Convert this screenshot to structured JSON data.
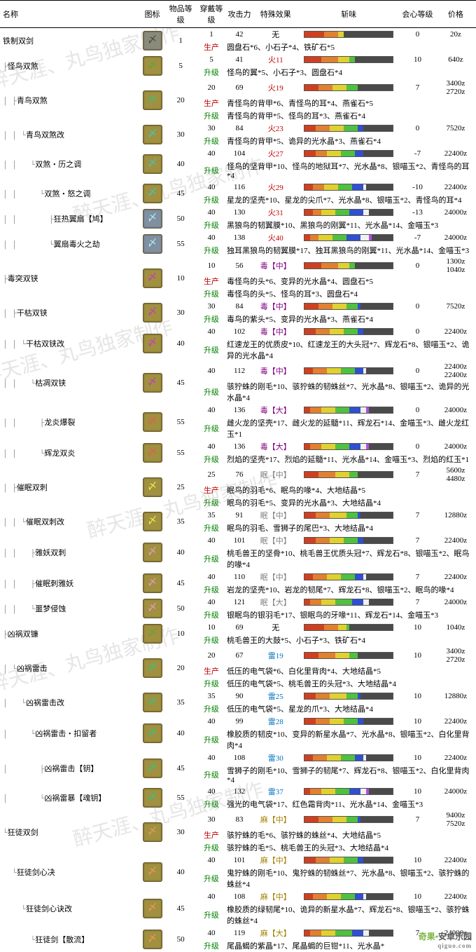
{
  "headers": {
    "name": "名称",
    "icon": "图标",
    "item_level": "物品等级",
    "wear_rank": "穿戴等级",
    "attack": "攻击力",
    "effect": "特殊效果",
    "sharpness": "斩味",
    "critical": "会心等级",
    "price": "价格"
  },
  "mat_labels": {
    "upgrade": "升级",
    "produce": "生产"
  },
  "watermark": "醉天涯、丸鸟独家制作",
  "footer": {
    "brand1": "奇果",
    "brand2": "安卓乐园",
    "url": "qiguo.com"
  },
  "elems": {
    "fire": "火",
    "poison": "毒",
    "sleep": "眠",
    "thunder": "雷",
    "drag": "麻",
    "none": "无",
    "mid": "【中】",
    "large": "【大】"
  },
  "weapons": [
    {
      "tree": "",
      "name": "铁制双剑",
      "icon": "gray",
      "ilvl": "1",
      "rows": [
        {
          "rank": "1",
          "atk": "42",
          "elem": "none",
          "eval": "无",
          "crit": "0",
          "price": "20z",
          "sharp": [
            14,
            10,
            4,
            0,
            0,
            0,
            0
          ]
        }
      ],
      "mats": [
        {
          "type": "produce",
          "text": "圆盘石*6、小石子*4、铁矿石*5"
        }
      ]
    },
    {
      "tree": "├",
      "name": "怪鸟双煞",
      "icon": "olive",
      "ilvl": "5",
      "rows": [
        {
          "rank": "5",
          "atk": "41",
          "elem": "fire",
          "eval": "火11",
          "crit": "10",
          "price": "640z",
          "sharp": [
            12,
            12,
            8,
            4,
            0,
            0,
            0
          ]
        }
      ],
      "mats": [
        {
          "type": "upgrade",
          "text": "怪鸟的翼*5、小石子*3、圆盘石*4"
        }
      ]
    },
    {
      "tree": "│ ├",
      "name": "青鸟双煞",
      "icon": "green",
      "ilvl": "20",
      "rows": [
        {
          "rank": "20",
          "atk": "69",
          "elem": "fire",
          "eval": "火19",
          "crit": "7",
          "price": "3400z\n2720z",
          "sharp": [
            10,
            10,
            10,
            8,
            0,
            0,
            0
          ]
        }
      ],
      "mats": [
        {
          "type": "produce",
          "text": "青怪鸟的背甲*6、青怪鸟的耳*4、燕雀石*5"
        },
        {
          "type": "upgrade",
          "text": "青怪鸟的背甲*5、怪鸟的耳*3、燕雀石*4"
        }
      ]
    },
    {
      "tree": "│ │ └",
      "name": "青鸟双煞改",
      "icon": "teal",
      "ilvl": "30",
      "rows": [
        {
          "rank": "30",
          "atk": "84",
          "elem": "fire",
          "eval": "火23",
          "crit": "0",
          "price": "7520z",
          "sharp": [
            8,
            10,
            10,
            10,
            4,
            0,
            0
          ]
        }
      ],
      "mats": [
        {
          "type": "upgrade",
          "text": "青怪鸟的背甲*5、诡异的光水晶*3、燕雀石*4"
        }
      ]
    },
    {
      "tree": "│ │   └",
      "name": "双煞・历之调",
      "icon": "teal",
      "ilvl": "40",
      "rows": [
        {
          "rank": "40",
          "atk": "104",
          "elem": "fire",
          "eval": "火27",
          "crit": "-7",
          "price": "22400z",
          "sharp": [
            8,
            8,
            10,
            10,
            6,
            0,
            0
          ]
        }
      ],
      "mats": [
        {
          "type": "upgrade",
          "text": "怪鸟的坚背甲*10、怪鸟的地狱耳*7、光水晶*8、银喵玉*2、青怪鸟的耳*4"
        }
      ]
    },
    {
      "tree": "│ │     └",
      "name": "双煞・怒之调",
      "icon": "teal",
      "ilvl": "45",
      "rows": [
        {
          "rank": "40",
          "atk": "116",
          "elem": "fire",
          "eval": "火29",
          "crit": "-10",
          "price": "22400z",
          "sharp": [
            6,
            8,
            10,
            10,
            8,
            2,
            0
          ]
        }
      ],
      "mats": [
        {
          "type": "upgrade",
          "text": "星龙的坚壳*10、星龙的尖爪*7、光水晶*8、银喵玉*2、青怪鸟的耳*4"
        }
      ]
    },
    {
      "tree": "│ │       ├",
      "name": "狂热翼扇【鸠】",
      "icon": "blue",
      "ilvl": "50",
      "rows": [
        {
          "rank": "40",
          "atk": "130",
          "elem": "fire",
          "eval": "火31",
          "crit": "-13",
          "price": "24000z",
          "sharp": [
            6,
            6,
            10,
            10,
            10,
            4,
            0
          ]
        }
      ],
      "mats": [
        {
          "type": "upgrade",
          "text": "黑狼鸟的韧翼膜*10、黑狼鸟的刚翼*11、光水晶*14、金喵玉*3"
        }
      ]
    },
    {
      "tree": "│ │       └",
      "name": "翼扇毒火之劫",
      "icon": "blue",
      "ilvl": "55",
      "rows": [
        {
          "rank": "40",
          "atk": "138",
          "elem": "fire",
          "eval": "火40",
          "crit": "-7",
          "price": "24000z",
          "sharp": [
            4,
            6,
            10,
            10,
            10,
            6,
            2
          ]
        }
      ],
      "mats": [
        {
          "type": "upgrade",
          "text": "独耳黑狼鸟的韧翼膜*17、独耳黑狼鸟的刚翼*11、光水晶*14、金喵玉*3"
        }
      ]
    },
    {
      "tree": "├",
      "name": "毒突双铗",
      "icon": "purple",
      "ilvl": "10",
      "rows": [
        {
          "rank": "10",
          "atk": "56",
          "elem": "poison",
          "eval": "毒【中】",
          "crit": "0",
          "price": "1300z\n1040z",
          "sharp": [
            12,
            12,
            8,
            4,
            0,
            0,
            0
          ]
        }
      ],
      "mats": [
        {
          "type": "produce",
          "text": "毒怪鸟的头*6、变异的光水晶*4、圆盘石*5"
        },
        {
          "type": "upgrade",
          "text": "毒怪鸟的头*5、怪鸟的耳*3、圆盘石*4"
        }
      ]
    },
    {
      "tree": "│ ├",
      "name": "干枯双铗",
      "icon": "purple",
      "ilvl": "30",
      "rows": [
        {
          "rank": "30",
          "atk": "84",
          "elem": "poison",
          "eval": "毒【中】",
          "crit": "0",
          "price": "7520z",
          "sharp": [
            10,
            10,
            10,
            8,
            2,
            0,
            0
          ]
        }
      ],
      "mats": [
        {
          "type": "upgrade",
          "text": "毒鸟的紫头*5、变异的光水晶*3、燕雀石*4"
        }
      ]
    },
    {
      "tree": "│ │ └",
      "name": "干枯双铗改",
      "icon": "purple",
      "ilvl": "40",
      "rows": [
        {
          "rank": "40",
          "atk": "102",
          "elem": "poison",
          "eval": "毒【中】",
          "crit": "0",
          "price": "22400z",
          "sharp": [
            8,
            10,
            10,
            10,
            4,
            0,
            0
          ]
        }
      ],
      "mats": [
        {
          "type": "upgrade",
          "text": "红速龙王的优质皮*10、红速龙王的大头冠*7、辉龙石*8、银喵玉*2、诡异的光水晶*4"
        }
      ]
    },
    {
      "tree": "│ │   └",
      "name": "枯凋双铗",
      "icon": "purple",
      "ilvl": "45",
      "rows": [
        {
          "rank": "40",
          "atk": "112",
          "elem": "poison",
          "eval": "毒【中】",
          "crit": "0",
          "price": "22400z\n22400z",
          "sharp": [
            6,
            10,
            10,
            10,
            6,
            2,
            0
          ]
        }
      ],
      "mats": [
        {
          "type": "upgrade",
          "text": "骇狞蛛的刚毛*10、骇狞蛛的韧蛛丝*7、光水晶*8、银喵玉*2、诡异的光水晶*4"
        }
      ]
    },
    {
      "tree": "│ │     ├",
      "name": "龙炎爆裂",
      "icon": "red",
      "ilvl": "55",
      "rows": [
        {
          "rank": "40",
          "atk": "136",
          "elem": "poison",
          "eval": "毒【大】",
          "crit": "0",
          "price": "24000z",
          "sharp": [
            4,
            8,
            10,
            10,
            8,
            4,
            2
          ]
        }
      ],
      "mats": [
        {
          "type": "upgrade",
          "text": "雌火龙的坚壳*17、雌火龙的延髓*11、辉龙石*14、金喵玉*3、雌火龙红玉*1"
        }
      ]
    },
    {
      "tree": "│ │     └",
      "name": "辉龙双炎",
      "icon": "red",
      "ilvl": "55",
      "rows": [
        {
          "rank": "40",
          "atk": "136",
          "elem": "poison",
          "eval": "毒【大】",
          "crit": "0",
          "price": "24000z",
          "sharp": [
            4,
            8,
            10,
            10,
            8,
            4,
            2
          ]
        }
      ],
      "mats": [
        {
          "type": "upgrade",
          "text": "烈焰的坚壳*17、烈焰的延髓*11、光水晶*14、金喵玉*3、烈焰的红玉*1"
        }
      ]
    },
    {
      "tree": "│ ├",
      "name": "催眠双刺",
      "icon": "yellow",
      "ilvl": "25",
      "rows": [
        {
          "rank": "25",
          "atk": "76",
          "elem": "sleep",
          "eval": "眠【中】",
          "crit": "7",
          "price": "5600z\n4480z",
          "sharp": [
            10,
            12,
            10,
            6,
            0,
            0,
            0
          ]
        }
      ],
      "mats": [
        {
          "type": "produce",
          "text": "眠鸟的羽毛*6、眠鸟的喙*4、大地结晶*5"
        },
        {
          "type": "upgrade",
          "text": "眠鸟的羽毛*5、变异的光水晶*3、大地结晶*4"
        }
      ]
    },
    {
      "tree": "│ │ └",
      "name": "催眠双刺改",
      "icon": "yellow",
      "ilvl": "35",
      "rows": [
        {
          "rank": "35",
          "atk": "91",
          "elem": "sleep",
          "eval": "眠【中】",
          "crit": "7",
          "price": "12880z",
          "sharp": [
            8,
            10,
            12,
            8,
            2,
            0,
            0
          ]
        }
      ],
      "mats": [
        {
          "type": "upgrade",
          "text": "眠鸟的羽毛、雪狮子的尾巴*3、大地结晶*4"
        }
      ]
    },
    {
      "tree": "│ │   ├",
      "name": "雅妖双刺",
      "icon": "pink",
      "ilvl": "40",
      "rows": [
        {
          "rank": "40",
          "atk": "101",
          "elem": "sleep",
          "eval": "眠【中】",
          "crit": "7",
          "price": "22400z",
          "sharp": [
            8,
            10,
            10,
            10,
            4,
            0,
            0
          ]
        }
      ],
      "mats": [
        {
          "type": "upgrade",
          "text": "桃毛兽王的坚骨*10、桃毛兽王优质头冠*7、辉龙石*8、银喵玉*2、眠鸟的喙*4"
        }
      ]
    },
    {
      "tree": "│ │   ├",
      "name": "催眠刺雅妖",
      "icon": "pink",
      "ilvl": "45",
      "rows": [
        {
          "rank": "40",
          "atk": "110",
          "elem": "sleep",
          "eval": "眠【中】",
          "crit": "7",
          "price": "22400z",
          "sharp": [
            6,
            10,
            10,
            10,
            6,
            2,
            0
          ]
        }
      ],
      "mats": [
        {
          "type": "upgrade",
          "text": "岩龙的坚壳*10、岩龙的韧尾*7、辉龙石*8、银喵玉*2、眠鸟的喙*4"
        }
      ]
    },
    {
      "tree": "│ │   └",
      "name": "噩梦侵蚀",
      "icon": "pink",
      "ilvl": "50",
      "rows": [
        {
          "rank": "40",
          "atk": "121",
          "elem": "sleep",
          "eval": "眠【大】",
          "crit": "7",
          "price": "24000z",
          "sharp": [
            4,
            8,
            10,
            12,
            8,
            4,
            0
          ]
        }
      ],
      "mats": [
        {
          "type": "upgrade",
          "text": "银眠鸟的银羽毛*17、银眠鸟的牙喙*11、辉龙石*14、金喵玉*3"
        }
      ]
    },
    {
      "tree": "├",
      "name": "凶祸双镰",
      "icon": "olive",
      "ilvl": "10",
      "rows": [
        {
          "rank": "10",
          "atk": "69",
          "elem": "none",
          "eval": "无",
          "crit": "10",
          "price": "1040z",
          "sharp": [
            14,
            10,
            6,
            2,
            0,
            0,
            0
          ]
        }
      ],
      "mats": [
        {
          "type": "upgrade",
          "text": "桃毛兽王的大鼓*5、小石子*3、铁矿石*4"
        }
      ]
    },
    {
      "tree": "│ └",
      "name": "凶祸雷击",
      "icon": "green",
      "ilvl": "20",
      "rows": [
        {
          "rank": "20",
          "atk": "67",
          "elem": "thunder",
          "eval": "雷19",
          "crit": "10",
          "price": "3400z\n2720z",
          "sharp": [
            10,
            12,
            10,
            6,
            0,
            0,
            0
          ]
        }
      ],
      "mats": [
        {
          "type": "produce",
          "text": "低压的电气袋*6、白化里背肉*4、大地结晶*5"
        },
        {
          "type": "upgrade",
          "text": "低压的电气袋*5、桃毛兽王的头冠*3、大地结晶*4"
        }
      ]
    },
    {
      "tree": "│   └",
      "name": "凶祸雷击改",
      "icon": "green",
      "ilvl": "35",
      "rows": [
        {
          "rank": "35",
          "atk": "90",
          "elem": "thunder",
          "eval": "雷25",
          "crit": "10",
          "price": "12880z",
          "sharp": [
            8,
            10,
            12,
            8,
            2,
            0,
            0
          ]
        }
      ],
      "mats": [
        {
          "type": "upgrade",
          "text": "低压的电气袋*5、星龙的爪*3、大地结晶*4"
        }
      ]
    },
    {
      "tree": "│     └",
      "name": "凶祸雷击・扣留者",
      "icon": "green",
      "ilvl": "40",
      "rows": [
        {
          "rank": "40",
          "atk": "99",
          "elem": "thunder",
          "eval": "雷28",
          "crit": "10",
          "price": "22400z",
          "sharp": [
            8,
            10,
            10,
            10,
            4,
            0,
            0
          ]
        }
      ],
      "mats": [
        {
          "type": "upgrade",
          "text": "橡胶质的韧皮*10、变异的新星水晶*7、光水晶*8、银喵玉*2、白化里背肉*4"
        }
      ]
    },
    {
      "tree": "│       ├",
      "name": "凶祸雷击【钥】",
      "icon": "green",
      "ilvl": "45",
      "rows": [
        {
          "rank": "40",
          "atk": "108",
          "elem": "thunder",
          "eval": "雷30",
          "crit": "10",
          "price": "22400z",
          "sharp": [
            6,
            10,
            10,
            10,
            6,
            2,
            0
          ]
        }
      ],
      "mats": [
        {
          "type": "upgrade",
          "text": "雪狮子的刚毛*10、雪狮子的韧尾*7、辉龙石*8、银喵玉*2、白化里背肉*4"
        }
      ]
    },
    {
      "tree": "│       └",
      "name": "凶祸雷暴【魂钥】",
      "icon": "green",
      "ilvl": "55",
      "rows": [
        {
          "rank": "40",
          "atk": "132",
          "elem": "thunder",
          "eval": "雷37",
          "crit": "10",
          "price": "24000z",
          "sharp": [
            4,
            8,
            10,
            10,
            8,
            4,
            2
          ]
        }
      ],
      "mats": [
        {
          "type": "upgrade",
          "text": "强光的电气袋*17、红色霜背肉*11、光水晶*14、金喵玉*3"
        }
      ]
    },
    {
      "tree": "└",
      "name": "狂徒双剑",
      "icon": "orange",
      "ilvl": "30",
      "rows": [
        {
          "rank": "30",
          "atk": "83",
          "elem": "drag",
          "eval": "麻【中】",
          "crit": "7",
          "price": "9400z\n7520z",
          "sharp": [
            10,
            10,
            10,
            8,
            2,
            0,
            0
          ]
        }
      ],
      "mats": [
        {
          "type": "produce",
          "text": "骇狞蛛的毛*6、骇狞蛛的蛛丝*4、大地结晶*5"
        },
        {
          "type": "upgrade",
          "text": "骇狞蛛的毛*5、桃毛兽王的头冠*3、大地结晶*4"
        }
      ]
    },
    {
      "tree": "  └",
      "name": "狂徒剑心决",
      "icon": "orange",
      "ilvl": "40",
      "rows": [
        {
          "rank": "40",
          "atk": "101",
          "elem": "drag",
          "eval": "麻【中】",
          "crit": "10",
          "price": "22400z",
          "sharp": [
            8,
            10,
            10,
            10,
            4,
            0,
            0
          ]
        }
      ],
      "mats": [
        {
          "type": "upgrade",
          "text": "鬼狞蛛的刚毛*10、鬼狞蛛的韧蛛丝*7、光水晶*8、银喵玉*2、骇狞蛛的蛛丝*4"
        }
      ]
    },
    {
      "tree": "    └",
      "name": "狂徒剑心诀改",
      "icon": "orange",
      "ilvl": "45",
      "rows": [
        {
          "rank": "40",
          "atk": "108",
          "elem": "drag",
          "eval": "麻【中】",
          "crit": "10",
          "price": "22400z",
          "sharp": [
            6,
            10,
            10,
            10,
            6,
            2,
            0
          ]
        }
      ],
      "mats": [
        {
          "type": "upgrade",
          "text": "橡胶质的绿韧尾*10、诡异的新星水晶*7、辉龙石*8、银喵玉*2、骇狞蛛的蛛丝*4"
        }
      ]
    },
    {
      "tree": "      └",
      "name": "狂徒剑【散流】",
      "icon": "orange",
      "ilvl": "50",
      "rows": [
        {
          "rank": "40",
          "atk": "119",
          "elem": "drag",
          "eval": "麻【大】",
          "crit": "7",
          "price": "24000z",
          "sharp": [
            4,
            8,
            10,
            12,
            8,
            4,
            0
          ]
        }
      ],
      "mats": [
        {
          "type": "upgrade",
          "text": "尾晶蝎的紫晶*17、尾晶蝎的巨钳*11、光水晶*"
        }
      ]
    }
  ]
}
